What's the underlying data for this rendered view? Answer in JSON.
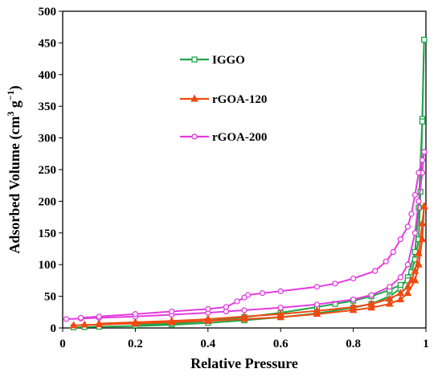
{
  "chart_data": {
    "type": "line",
    "title": "",
    "xlabel": "Relative Pressure",
    "ylabel_main": "Adsorbed Volume (cm",
    "ylabel_sup1": "3",
    "ylabel_mid": " g",
    "ylabel_sup2": "−1",
    "ylabel_end": ")",
    "xlim": [
      0,
      1
    ],
    "ylim": [
      0,
      500
    ],
    "xticks": [
      "0",
      "0.2",
      "0.4",
      "0.6",
      "0.8",
      "1"
    ],
    "yticks": [
      "0",
      "50",
      "100",
      "150",
      "200",
      "250",
      "300",
      "350",
      "400",
      "450",
      "500"
    ],
    "grid": false,
    "legend_position": "top-left",
    "series": [
      {
        "name": "IGGO",
        "color": "#1fa64a",
        "marker": "square",
        "adsorption": [
          [
            0.03,
            1
          ],
          [
            0.06,
            1.5
          ],
          [
            0.1,
            2
          ],
          [
            0.2,
            3
          ],
          [
            0.3,
            5
          ],
          [
            0.4,
            8
          ],
          [
            0.5,
            12
          ],
          [
            0.6,
            17
          ],
          [
            0.7,
            23
          ],
          [
            0.8,
            32
          ],
          [
            0.85,
            38
          ],
          [
            0.9,
            50
          ],
          [
            0.93,
            62
          ],
          [
            0.95,
            80
          ],
          [
            0.97,
            120
          ],
          [
            0.98,
            190
          ],
          [
            0.99,
            330
          ],
          [
            0.995,
            455
          ]
        ],
        "desorption": [
          [
            0.995,
            455
          ],
          [
            0.99,
            326
          ],
          [
            0.985,
            215
          ],
          [
            0.98,
            140
          ],
          [
            0.97,
            108
          ],
          [
            0.96,
            88
          ],
          [
            0.95,
            75
          ],
          [
            0.93,
            68
          ],
          [
            0.9,
            60
          ],
          [
            0.85,
            50
          ],
          [
            0.8,
            43
          ],
          [
            0.75,
            38
          ],
          [
            0.7,
            33
          ],
          [
            0.6,
            24
          ],
          [
            0.5,
            17
          ],
          [
            0.4,
            11
          ],
          [
            0.3,
            7
          ],
          [
            0.2,
            5
          ]
        ]
      },
      {
        "name": "rGOA-120",
        "color": "#f04a12",
        "marker": "triangle",
        "adsorption": [
          [
            0.03,
            4
          ],
          [
            0.06,
            5
          ],
          [
            0.1,
            5.5
          ],
          [
            0.2,
            7
          ],
          [
            0.3,
            9
          ],
          [
            0.4,
            11
          ],
          [
            0.5,
            14
          ],
          [
            0.6,
            17
          ],
          [
            0.7,
            22
          ],
          [
            0.8,
            28
          ],
          [
            0.85,
            32
          ],
          [
            0.9,
            38
          ],
          [
            0.93,
            45
          ],
          [
            0.95,
            55
          ],
          [
            0.97,
            75
          ],
          [
            0.98,
            100
          ],
          [
            0.99,
            140
          ],
          [
            0.995,
            192
          ]
        ],
        "desorption": [
          [
            0.995,
            192
          ],
          [
            0.99,
            165
          ],
          [
            0.98,
            118
          ],
          [
            0.97,
            90
          ],
          [
            0.96,
            75
          ],
          [
            0.95,
            65
          ],
          [
            0.93,
            55
          ],
          [
            0.9,
            46
          ],
          [
            0.85,
            38
          ],
          [
            0.8,
            33
          ],
          [
            0.7,
            27
          ],
          [
            0.6,
            22
          ],
          [
            0.5,
            18
          ],
          [
            0.4,
            14
          ],
          [
            0.3,
            11
          ],
          [
            0.2,
            9
          ],
          [
            0.1,
            7
          ]
        ]
      },
      {
        "name": "rGOA-200",
        "color": "#e43ce0",
        "marker": "circle",
        "adsorption": [
          [
            0.01,
            14
          ],
          [
            0.05,
            15
          ],
          [
            0.1,
            16
          ],
          [
            0.2,
            18
          ],
          [
            0.3,
            21
          ],
          [
            0.4,
            24
          ],
          [
            0.45,
            26
          ],
          [
            0.5,
            28
          ],
          [
            0.6,
            32
          ],
          [
            0.7,
            37
          ],
          [
            0.8,
            45
          ],
          [
            0.85,
            52
          ],
          [
            0.9,
            65
          ],
          [
            0.93,
            80
          ],
          [
            0.95,
            100
          ],
          [
            0.97,
            150
          ],
          [
            0.98,
            200
          ],
          [
            0.99,
            245
          ],
          [
            0.995,
            278
          ]
        ],
        "desorption": [
          [
            0.995,
            278
          ],
          [
            0.99,
            265
          ],
          [
            0.98,
            245
          ],
          [
            0.97,
            210
          ],
          [
            0.96,
            180
          ],
          [
            0.95,
            160
          ],
          [
            0.93,
            140
          ],
          [
            0.91,
            120
          ],
          [
            0.89,
            105
          ],
          [
            0.86,
            90
          ],
          [
            0.8,
            78
          ],
          [
            0.75,
            70
          ],
          [
            0.7,
            65
          ],
          [
            0.6,
            58
          ],
          [
            0.55,
            55
          ],
          [
            0.51,
            52
          ],
          [
            0.5,
            48
          ],
          [
            0.48,
            42
          ],
          [
            0.45,
            33
          ],
          [
            0.4,
            30
          ],
          [
            0.3,
            26
          ],
          [
            0.2,
            22
          ],
          [
            0.1,
            18
          ],
          [
            0.05,
            16
          ]
        ]
      }
    ]
  }
}
